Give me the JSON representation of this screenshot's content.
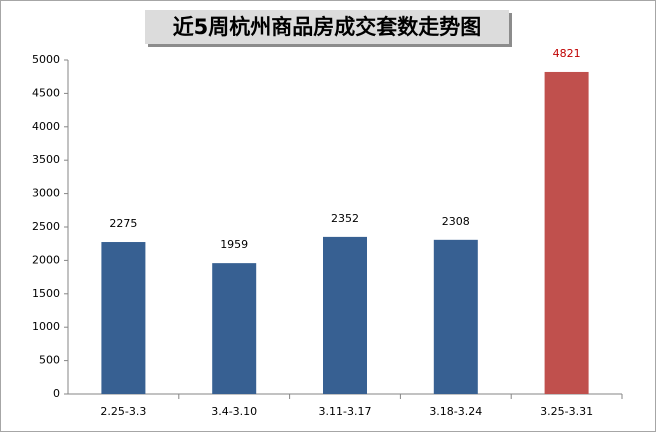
{
  "chart_data": {
    "type": "bar",
    "title": "近5周杭州商品房成交套数走势图",
    "categories": [
      "2.25-3.3",
      "3.4-3.10",
      "3.11-3.17",
      "3.18-3.24",
      "3.25-3.31"
    ],
    "values": [
      2275,
      1959,
      2352,
      2308,
      4821
    ],
    "colors": [
      "#376092",
      "#376092",
      "#376092",
      "#376092",
      "#c0504d"
    ],
    "value_label_colors": [
      "#000000",
      "#000000",
      "#000000",
      "#000000",
      "#c00000"
    ],
    "ylim": [
      0,
      5000
    ],
    "yticks": [
      0,
      500,
      1000,
      1500,
      2000,
      2500,
      3000,
      3500,
      4000,
      4500,
      5000
    ],
    "grid": false
  }
}
